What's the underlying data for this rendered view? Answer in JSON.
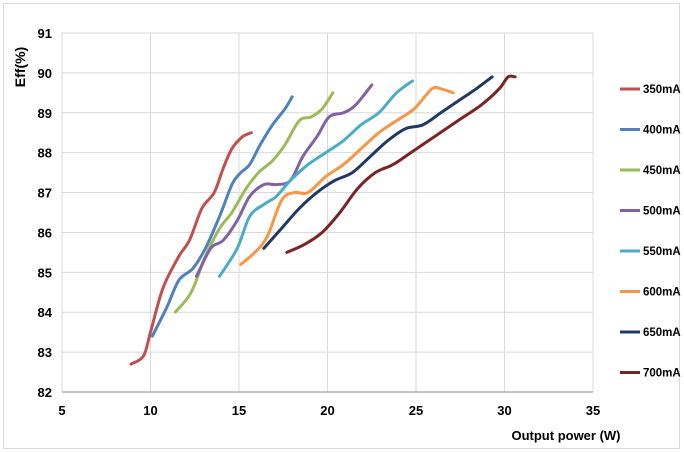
{
  "chart_data": {
    "type": "line",
    "title": "",
    "xlabel": "Output power (W)",
    "ylabel": "Eff(%)",
    "xlim": [
      5,
      35
    ],
    "ylim": [
      82,
      91
    ],
    "xticks": [
      5,
      10,
      15,
      20,
      25,
      30,
      35
    ],
    "yticks": [
      82,
      83,
      84,
      85,
      86,
      87,
      88,
      89,
      90,
      91
    ],
    "grid": true,
    "legend": "right",
    "series": [
      {
        "name": "350mA",
        "color": "#c0504d",
        "x": [
          8.9,
          9.6,
          10.0,
          10.7,
          11.6,
          12.2,
          12.9,
          13.6,
          14.1,
          14.6,
          15.2,
          15.7
        ],
        "y": [
          82.7,
          82.9,
          83.5,
          84.6,
          85.4,
          85.8,
          86.6,
          87.0,
          87.6,
          88.1,
          88.4,
          88.5
        ]
      },
      {
        "name": "400mA",
        "color": "#4f81bd",
        "x": [
          10.1,
          10.9,
          11.6,
          12.4,
          13.1,
          13.9,
          14.6,
          15.1,
          15.6,
          16.2,
          16.9,
          17.6,
          18.0
        ],
        "y": [
          83.4,
          84.1,
          84.8,
          85.1,
          85.6,
          86.4,
          87.2,
          87.5,
          87.7,
          88.2,
          88.7,
          89.1,
          89.4
        ]
      },
      {
        "name": "450mA",
        "color": "#9bbb59",
        "x": [
          11.4,
          12.3,
          13.1,
          13.9,
          14.6,
          15.4,
          16.1,
          16.9,
          17.6,
          18.4,
          19.1,
          19.7,
          20.3
        ],
        "y": [
          84.0,
          84.5,
          85.4,
          86.1,
          86.5,
          87.1,
          87.5,
          87.8,
          88.2,
          88.8,
          88.9,
          89.1,
          89.5
        ]
      },
      {
        "name": "500mA",
        "color": "#8064a2",
        "x": [
          12.6,
          13.4,
          14.1,
          14.9,
          15.6,
          16.4,
          17.1,
          17.9,
          18.6,
          19.4,
          20.1,
          20.9,
          21.6,
          22.5
        ],
        "y": [
          84.9,
          85.6,
          85.8,
          86.3,
          86.9,
          87.2,
          87.2,
          87.3,
          87.9,
          88.4,
          88.9,
          89.0,
          89.2,
          89.7
        ]
      },
      {
        "name": "550mA",
        "color": "#4bacc6",
        "x": [
          13.9,
          14.9,
          15.6,
          16.4,
          17.1,
          17.9,
          18.9,
          19.9,
          20.9,
          21.9,
          22.9,
          23.9,
          24.8
        ],
        "y": [
          84.9,
          85.6,
          86.4,
          86.7,
          86.9,
          87.3,
          87.7,
          88.0,
          88.3,
          88.7,
          89.0,
          89.5,
          89.8
        ]
      },
      {
        "name": "600mA",
        "color": "#f79646",
        "x": [
          15.1,
          15.9,
          16.6,
          17.4,
          18.1,
          18.9,
          19.9,
          20.9,
          21.9,
          22.9,
          23.9,
          24.9,
          25.9,
          26.4,
          27.1
        ],
        "y": [
          85.2,
          85.5,
          85.9,
          86.8,
          87.0,
          87.0,
          87.4,
          87.7,
          88.1,
          88.5,
          88.8,
          89.1,
          89.6,
          89.6,
          89.5
        ]
      },
      {
        "name": "650mA",
        "color": "#1f3864",
        "x": [
          16.4,
          17.4,
          18.4,
          19.4,
          20.4,
          21.4,
          22.4,
          23.4,
          24.4,
          25.4,
          26.4,
          27.4,
          28.4,
          29.3
        ],
        "y": [
          85.6,
          86.1,
          86.6,
          87.0,
          87.3,
          87.5,
          87.9,
          88.3,
          88.6,
          88.7,
          89.0,
          89.3,
          89.6,
          89.9
        ]
      },
      {
        "name": "700mA",
        "color": "#7b2325",
        "x": [
          17.7,
          18.7,
          19.7,
          20.7,
          21.7,
          22.7,
          23.7,
          24.7,
          25.7,
          26.7,
          27.7,
          28.7,
          29.7,
          30.2,
          30.6
        ],
        "y": [
          85.5,
          85.7,
          86.0,
          86.5,
          87.1,
          87.5,
          87.7,
          88.0,
          88.3,
          88.6,
          88.9,
          89.2,
          89.6,
          89.9,
          89.9
        ]
      }
    ]
  }
}
